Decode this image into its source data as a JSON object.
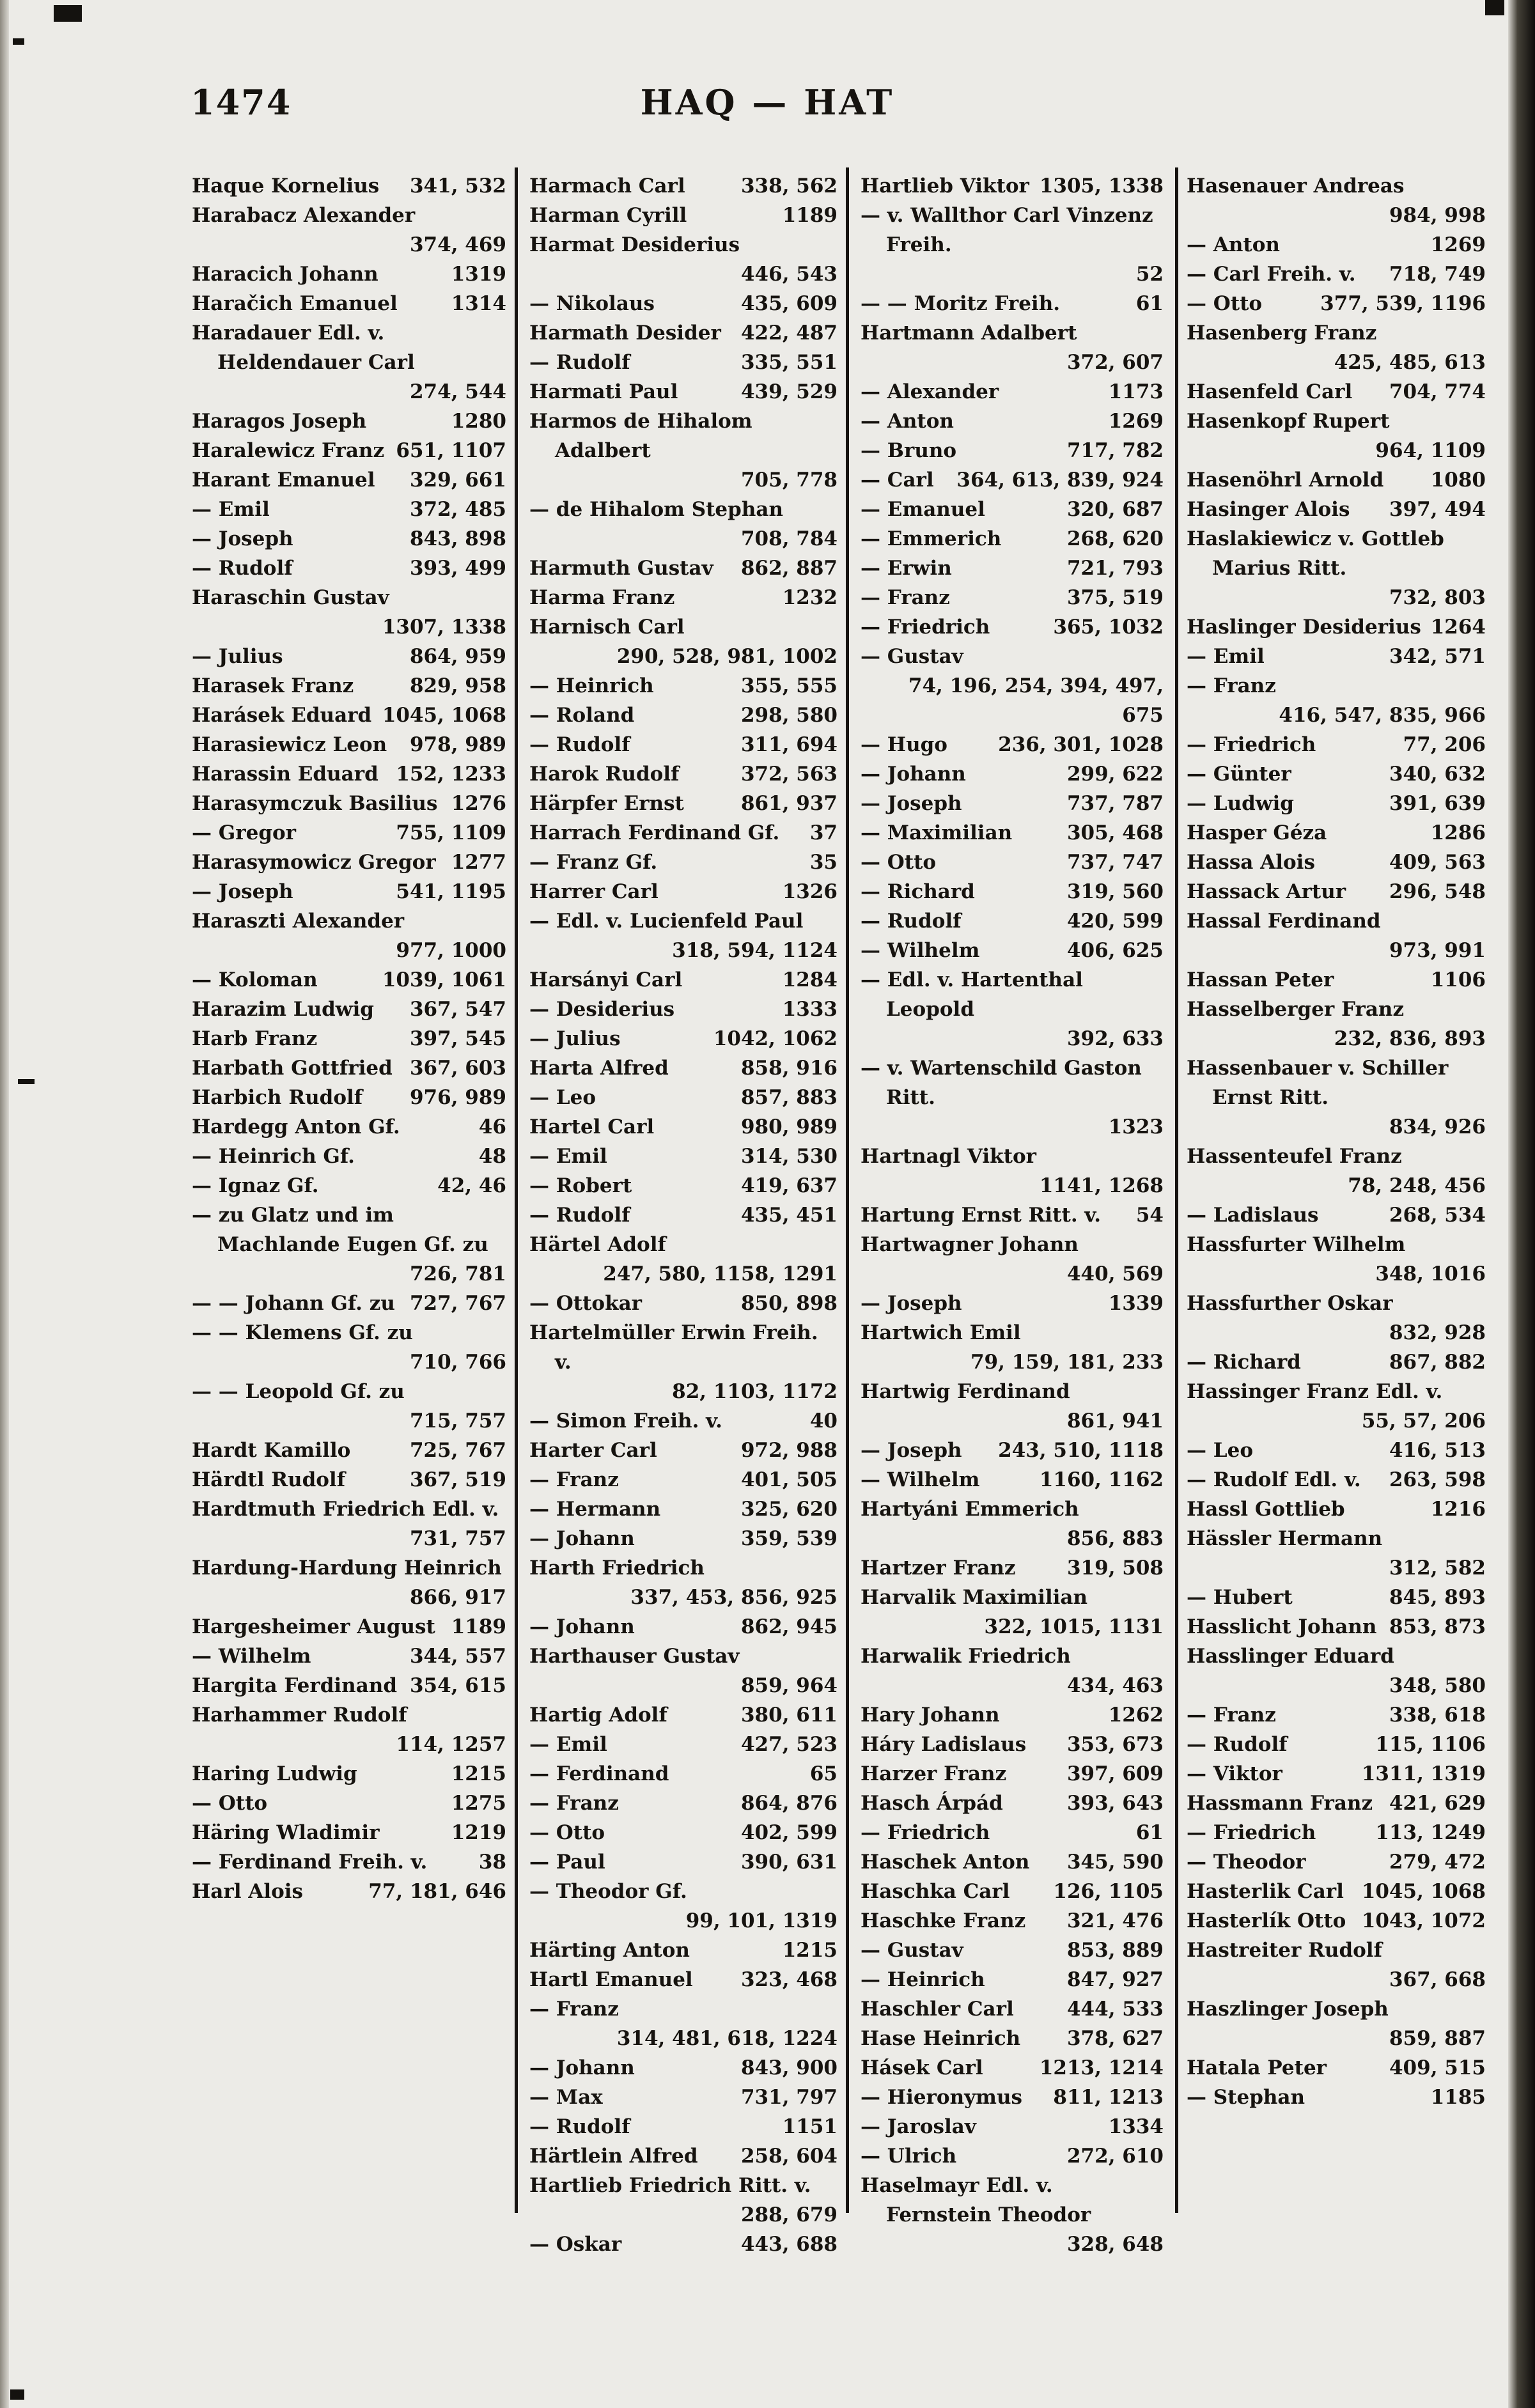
{
  "page": {
    "number": "1474",
    "title": "HAQ — HAT"
  },
  "columns": [
    {
      "entries": [
        {
          "n": "Haque Kornelius",
          "p": "341, 532"
        },
        {
          "n": "Harabacz Alexander",
          "p": "374, 469"
        },
        {
          "n": "Haracich Johann",
          "p": "1319"
        },
        {
          "n": "Haračich Emanuel",
          "p": "1314"
        },
        {
          "n": "Haradauer Edl. v. Heldendauer Carl",
          "p": "274, 544"
        },
        {
          "n": "Haragos Joseph",
          "p": "1280"
        },
        {
          "n": "Haralewicz Franz",
          "p": "651, 1107"
        },
        {
          "n": "Harant Emanuel",
          "p": "329, 661"
        },
        {
          "n": "— Emil",
          "p": "372, 485"
        },
        {
          "n": "— Joseph",
          "p": "843, 898"
        },
        {
          "n": "— Rudolf",
          "p": "393, 499"
        },
        {
          "n": "Haraschin Gustav",
          "p": "1307, 1338"
        },
        {
          "n": "— Julius",
          "p": "864, 959"
        },
        {
          "n": "Harasek Franz",
          "p": "829, 958"
        },
        {
          "n": "Harásek Eduard",
          "p": "1045, 1068"
        },
        {
          "n": "Harasiewicz Leon",
          "p": "978, 989"
        },
        {
          "n": "Harassin Eduard",
          "p": "152, 1233"
        },
        {
          "n": "Harasymczuk Basilius",
          "p": "1276"
        },
        {
          "n": "— Gregor",
          "p": "755, 1109"
        },
        {
          "n": "Harasymowicz Gregor",
          "p": "1277"
        },
        {
          "n": "— Joseph",
          "p": "541, 1195"
        },
        {
          "n": "Haraszti Alexander",
          "p": "977, 1000"
        },
        {
          "n": "— Koloman",
          "p": "1039, 1061"
        },
        {
          "n": "Harazim Ludwig",
          "p": "367, 547"
        },
        {
          "n": "Harb Franz",
          "p": "397, 545"
        },
        {
          "n": "Harbath Gottfried",
          "p": "367, 603"
        },
        {
          "n": "Harbich Rudolf",
          "p": "976, 989"
        },
        {
          "n": "Hardegg Anton Gf.",
          "p": "46"
        },
        {
          "n": "— Heinrich Gf.",
          "p": "48"
        },
        {
          "n": "— Ignaz Gf.",
          "p": "42, 46"
        },
        {
          "n": "— zu Glatz und im Machlande Eugen Gf. zu",
          "p": "726, 781"
        },
        {
          "n": "— — Johann Gf. zu",
          "p": "727, 767"
        },
        {
          "n": "— — Klemens Gf. zu",
          "p": "710, 766"
        },
        {
          "n": "— — Leopold Gf. zu",
          "p": "715, 757"
        },
        {
          "n": "Hardt Kamillo",
          "p": "725, 767"
        },
        {
          "n": "Härdtl Rudolf",
          "p": "367, 519"
        },
        {
          "n": "Hardtmuth Friedrich Edl. v.",
          "p": "731, 757"
        },
        {
          "n": "Hardung-Hardung Heinrich",
          "p": "866, 917"
        },
        {
          "n": "Hargesheimer August",
          "p": "1189"
        },
        {
          "n": "— Wilhelm",
          "p": "344, 557"
        },
        {
          "n": "Hargita Ferdinand",
          "p": "354, 615"
        },
        {
          "n": "Harhammer Rudolf",
          "p": "114, 1257"
        },
        {
          "n": "Haring Ludwig",
          "p": "1215"
        },
        {
          "n": "— Otto",
          "p": "1275"
        },
        {
          "n": "Häring Wladimir",
          "p": "1219"
        },
        {
          "n": "— Ferdinand Freih. v.",
          "p": "38"
        },
        {
          "n": "Harl Alois",
          "p": "77, 181, 646"
        }
      ]
    },
    {
      "entries": [
        {
          "n": "Harmach Carl",
          "p": "338, 562"
        },
        {
          "n": "Harman Cyrill",
          "p": "1189"
        },
        {
          "n": "Harmat Desiderius",
          "p": "446, 543"
        },
        {
          "n": "— Nikolaus",
          "p": "435, 609"
        },
        {
          "n": "Harmath Desider",
          "p": "422, 487"
        },
        {
          "n": "— Rudolf",
          "p": "335, 551"
        },
        {
          "n": "Harmati Paul",
          "p": "439, 529"
        },
        {
          "n": "Harmos de Hihalom Adalbert",
          "p": "705, 778"
        },
        {
          "n": "— de Hihalom Stephan",
          "p": "708, 784"
        },
        {
          "n": "Harmuth Gustav",
          "p": "862, 887"
        },
        {
          "n": "Harma Franz",
          "p": "1232"
        },
        {
          "n": "Harnisch Carl",
          "p": "290, 528, 981, 1002"
        },
        {
          "n": "— Heinrich",
          "p": "355, 555"
        },
        {
          "n": "— Roland",
          "p": "298, 580"
        },
        {
          "n": "— Rudolf",
          "p": "311, 694"
        },
        {
          "n": "Harok Rudolf",
          "p": "372, 563"
        },
        {
          "n": "Härpfer Ernst",
          "p": "861, 937"
        },
        {
          "n": "Harrach Ferdinand Gf.",
          "p": "37"
        },
        {
          "n": "— Franz Gf.",
          "p": "35"
        },
        {
          "n": "Harrer Carl",
          "p": "1326"
        },
        {
          "n": "— Edl. v. Lucienfeld Paul",
          "p": "318, 594, 1124"
        },
        {
          "n": "Harsányi Carl",
          "p": "1284"
        },
        {
          "n": "— Desiderius",
          "p": "1333"
        },
        {
          "n": "— Julius",
          "p": "1042, 1062"
        },
        {
          "n": "Harta Alfred",
          "p": "858, 916"
        },
        {
          "n": "— Leo",
          "p": "857, 883"
        },
        {
          "n": "Hartel Carl",
          "p": "980, 989"
        },
        {
          "n": "— Emil",
          "p": "314, 530"
        },
        {
          "n": "— Robert",
          "p": "419, 637"
        },
        {
          "n": "— Rudolf",
          "p": "435, 451"
        },
        {
          "n": "Härtel Adolf",
          "p": "247, 580, 1158, 1291"
        },
        {
          "n": "— Ottokar",
          "p": "850, 898"
        },
        {
          "n": "Hartelmüller Erwin Freih. v.",
          "p": "82, 1103, 1172"
        },
        {
          "n": "— Simon Freih. v.",
          "p": "40"
        },
        {
          "n": "Harter Carl",
          "p": "972, 988"
        },
        {
          "n": "— Franz",
          "p": "401, 505"
        },
        {
          "n": "— Hermann",
          "p": "325, 620"
        },
        {
          "n": "— Johann",
          "p": "359, 539"
        },
        {
          "n": "Harth Friedrich",
          "p": "337, 453, 856, 925"
        },
        {
          "n": "— Johann",
          "p": "862, 945"
        },
        {
          "n": "Harthauser Gustav",
          "p": "859, 964"
        },
        {
          "n": "Hartig Adolf",
          "p": "380, 611"
        },
        {
          "n": "— Emil",
          "p": "427, 523"
        },
        {
          "n": "— Ferdinand",
          "p": "65"
        },
        {
          "n": "— Franz",
          "p": "864, 876"
        },
        {
          "n": "— Otto",
          "p": "402, 599"
        },
        {
          "n": "— Paul",
          "p": "390, 631"
        },
        {
          "n": "— Theodor Gf.",
          "p": "99, 101, 1319"
        },
        {
          "n": "Härting Anton",
          "p": "1215"
        },
        {
          "n": "Hartl Emanuel",
          "p": "323, 468"
        },
        {
          "n": "— Franz",
          "p": "314, 481, 618, 1224"
        },
        {
          "n": "— Johann",
          "p": "843, 900"
        },
        {
          "n": "— Max",
          "p": "731, 797"
        },
        {
          "n": "— Rudolf",
          "p": "1151"
        },
        {
          "n": "Härtlein Alfred",
          "p": "258, 604"
        },
        {
          "n": "Hartlieb Friedrich Ritt. v.",
          "p": "288, 679"
        },
        {
          "n": "— Oskar",
          "p": "443, 688"
        }
      ]
    },
    {
      "entries": [
        {
          "n": "Hartlieb Viktor",
          "p": "1305, 1338"
        },
        {
          "n": "— v. Wallthor Carl Vinzenz Freih.",
          "p": "52"
        },
        {
          "n": "— — Moritz Freih.",
          "p": "61"
        },
        {
          "n": "Hartmann Adalbert",
          "p": "372, 607"
        },
        {
          "n": "— Alexander",
          "p": "1173"
        },
        {
          "n": "— Anton",
          "p": "1269"
        },
        {
          "n": "— Bruno",
          "p": "717, 782"
        },
        {
          "n": "— Carl",
          "p": "364, 613, 839, 924"
        },
        {
          "n": "— Emanuel",
          "p": "320, 687"
        },
        {
          "n": "— Emmerich",
          "p": "268, 620"
        },
        {
          "n": "— Erwin",
          "p": "721, 793"
        },
        {
          "n": "— Franz",
          "p": "375, 519"
        },
        {
          "n": "— Friedrich",
          "p": "365, 1032"
        },
        {
          "n": "— Gustav",
          "p": "74, 196, 254, 394, 497, 675"
        },
        {
          "n": "— Hugo",
          "p": "236, 301, 1028"
        },
        {
          "n": "— Johann",
          "p": "299, 622"
        },
        {
          "n": "— Joseph",
          "p": "737, 787"
        },
        {
          "n": "— Maximilian",
          "p": "305, 468"
        },
        {
          "n": "— Otto",
          "p": "737, 747"
        },
        {
          "n": "— Richard",
          "p": "319, 560"
        },
        {
          "n": "— Rudolf",
          "p": "420, 599"
        },
        {
          "n": "— Wilhelm",
          "p": "406, 625"
        },
        {
          "n": "— Edl. v. Hartenthal Leopold",
          "p": "392, 633"
        },
        {
          "n": "— v. Wartenschild Gaston Ritt.",
          "p": "1323"
        },
        {
          "n": "Hartnagl Viktor",
          "p": "1141, 1268"
        },
        {
          "n": "Hartung Ernst Ritt. v.",
          "p": "54"
        },
        {
          "n": "Hartwagner Johann",
          "p": "440, 569"
        },
        {
          "n": "— Joseph",
          "p": "1339"
        },
        {
          "n": "Hartwich Emil",
          "p": "79, 159, 181, 233"
        },
        {
          "n": "Hartwig Ferdinand",
          "p": "861, 941"
        },
        {
          "n": "— Joseph",
          "p": "243, 510, 1118"
        },
        {
          "n": "— Wilhelm",
          "p": "1160, 1162"
        },
        {
          "n": "Hartyáni Emmerich",
          "p": "856, 883"
        },
        {
          "n": "Hartzer Franz",
          "p": "319, 508"
        },
        {
          "n": "Harvalik Maximilian",
          "p": "322, 1015, 1131"
        },
        {
          "n": "Harwalik Friedrich",
          "p": "434, 463"
        },
        {
          "n": "Hary Johann",
          "p": "1262"
        },
        {
          "n": "Háry Ladislaus",
          "p": "353, 673"
        },
        {
          "n": "Harzer Franz",
          "p": "397, 609"
        },
        {
          "n": "Hasch Árpád",
          "p": "393, 643"
        },
        {
          "n": "— Friedrich",
          "p": "61"
        },
        {
          "n": "Haschek Anton",
          "p": "345, 590"
        },
        {
          "n": "Haschka Carl",
          "p": "126, 1105"
        },
        {
          "n": "Haschke Franz",
          "p": "321, 476"
        },
        {
          "n": "— Gustav",
          "p": "853, 889"
        },
        {
          "n": "— Heinrich",
          "p": "847, 927"
        },
        {
          "n": "Haschler Carl",
          "p": "444, 533"
        },
        {
          "n": "Hase Heinrich",
          "p": "378, 627"
        },
        {
          "n": "Hásek Carl",
          "p": "1213, 1214"
        },
        {
          "n": "— Hieronymus",
          "p": "811, 1213"
        },
        {
          "n": "— Jaroslav",
          "p": "1334"
        },
        {
          "n": "— Ulrich",
          "p": "272, 610"
        },
        {
          "n": "Haselmayr Edl. v. Fernstein Theodor",
          "p": "328, 648"
        }
      ]
    },
    {
      "entries": [
        {
          "n": "Hasenauer Andreas",
          "p": "984, 998"
        },
        {
          "n": "— Anton",
          "p": "1269"
        },
        {
          "n": "— Carl Freih. v.",
          "p": "718, 749"
        },
        {
          "n": "— Otto",
          "p": "377, 539, 1196"
        },
        {
          "n": "Hasenberg Franz",
          "p": "425, 485, 613"
        },
        {
          "n": "Hasenfeld Carl",
          "p": "704, 774"
        },
        {
          "n": "Hasenkopf Rupert",
          "p": "964, 1109"
        },
        {
          "n": "Hasenöhrl Arnold",
          "p": "1080"
        },
        {
          "n": "Hasinger Alois",
          "p": "397, 494"
        },
        {
          "n": "Haslakiewicz v. Gottleb Marius Ritt.",
          "p": "732, 803"
        },
        {
          "n": "Haslinger Desiderius",
          "p": "1264"
        },
        {
          "n": "— Emil",
          "p": "342, 571"
        },
        {
          "n": "— Franz",
          "p": "416, 547, 835, 966"
        },
        {
          "n": "— Friedrich",
          "p": "77, 206"
        },
        {
          "n": "— Günter",
          "p": "340, 632"
        },
        {
          "n": "— Ludwig",
          "p": "391, 639"
        },
        {
          "n": "Hasper Géza",
          "p": "1286"
        },
        {
          "n": "Hassa Alois",
          "p": "409, 563"
        },
        {
          "n": "Hassack Artur",
          "p": "296, 548"
        },
        {
          "n": "Hassal Ferdinand",
          "p": "973, 991"
        },
        {
          "n": "Hassan Peter",
          "p": "1106"
        },
        {
          "n": "Hasselberger Franz",
          "p": "232, 836, 893"
        },
        {
          "n": "Hassenbauer v. Schiller Ernst Ritt.",
          "p": "834, 926"
        },
        {
          "n": "Hassenteufel Franz",
          "p": "78, 248, 456"
        },
        {
          "n": "— Ladislaus",
          "p": "268, 534"
        },
        {
          "n": "Hassfurter Wilhelm",
          "p": "348, 1016"
        },
        {
          "n": "Hassfurther Oskar",
          "p": "832, 928"
        },
        {
          "n": "— Richard",
          "p": "867, 882"
        },
        {
          "n": "Hassinger Franz Edl. v.",
          "p": "55, 57, 206"
        },
        {
          "n": "— Leo",
          "p": "416, 513"
        },
        {
          "n": "— Rudolf Edl. v.",
          "p": "263, 598"
        },
        {
          "n": "Hassl Gottlieb",
          "p": "1216"
        },
        {
          "n": "Hässler Hermann",
          "p": "312, 582"
        },
        {
          "n": "— Hubert",
          "p": "845, 893"
        },
        {
          "n": "Hasslicht Johann",
          "p": "853, 873"
        },
        {
          "n": "Hasslinger Eduard",
          "p": "348, 580"
        },
        {
          "n": "— Franz",
          "p": "338, 618"
        },
        {
          "n": "— Rudolf",
          "p": "115, 1106"
        },
        {
          "n": "— Viktor",
          "p": "1311, 1319"
        },
        {
          "n": "Hassmann Franz",
          "p": "421, 629"
        },
        {
          "n": "— Friedrich",
          "p": "113, 1249"
        },
        {
          "n": "— Theodor",
          "p": "279, 472"
        },
        {
          "n": "Hasterlik Carl",
          "p": "1045, 1068"
        },
        {
          "n": "Hasterlík Otto",
          "p": "1043, 1072"
        },
        {
          "n": "Hastreiter Rudolf",
          "p": "367, 668"
        },
        {
          "n": "Haszlinger Joseph",
          "p": "859, 887"
        },
        {
          "n": "Hatala Peter",
          "p": "409, 515"
        },
        {
          "n": "— Stephan",
          "p": "1185"
        }
      ]
    }
  ]
}
